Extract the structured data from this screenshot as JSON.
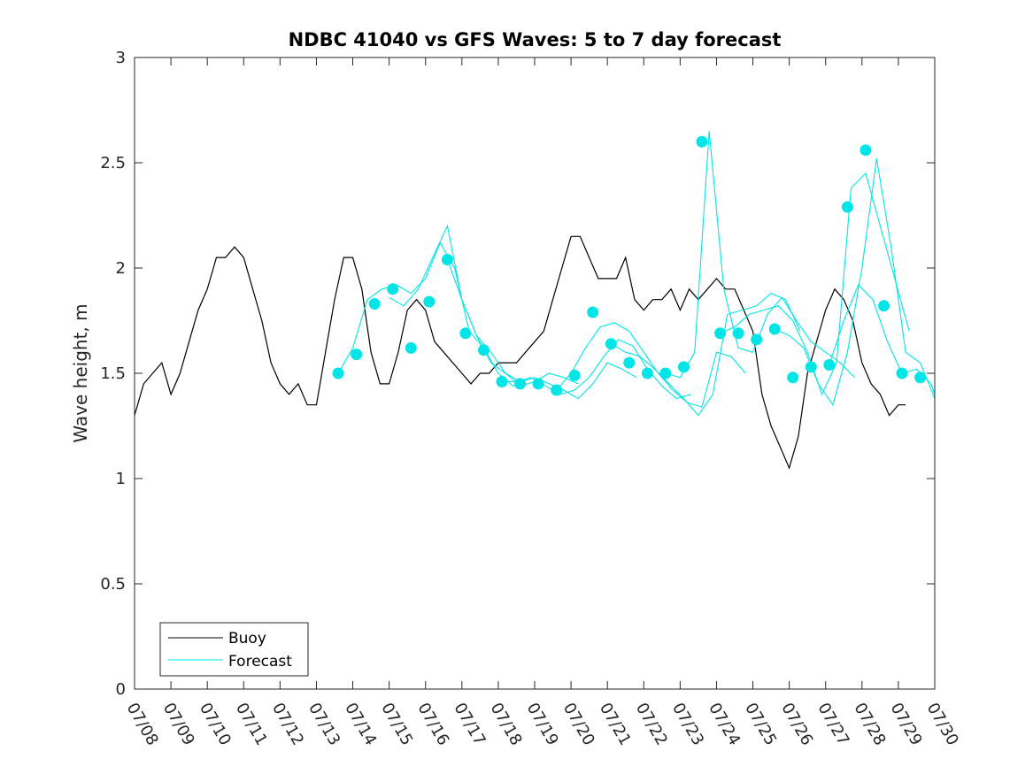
{
  "chart_data": {
    "type": "line",
    "title": "NDBC 41040 vs GFS Waves: 5 to 7 day forecast",
    "xlabel": "",
    "ylabel": "Wave height, m",
    "x_tick_labels": [
      "07/08",
      "07/09",
      "07/10",
      "07/11",
      "07/12",
      "07/13",
      "07/14",
      "07/15",
      "07/16",
      "07/17",
      "07/18",
      "07/19",
      "07/20",
      "07/21",
      "07/22",
      "07/23",
      "07/24",
      "07/25",
      "07/26",
      "07/27",
      "07/28",
      "07/29",
      "07/30"
    ],
    "x_range_days": [
      0,
      22
    ],
    "y_ticks": [
      0,
      0.5,
      1,
      1.5,
      2,
      2.5,
      3
    ],
    "y_tick_labels": [
      "0",
      "0.5",
      "1",
      "1.5",
      "2",
      "2.5",
      "3"
    ],
    "ylim": [
      0,
      3
    ],
    "grid": false,
    "legend": {
      "placement": "bottom-left",
      "entries": [
        "Buoy",
        "Forecast"
      ]
    },
    "colors": {
      "buoy": "#000000",
      "forecast": "#00e5e5",
      "axis": "#262626"
    },
    "series": [
      {
        "name": "Buoy",
        "style": "line",
        "x": [
          0,
          0.25,
          0.5,
          0.75,
          1,
          1.25,
          1.5,
          1.75,
          2,
          2.25,
          2.5,
          2.75,
          3,
          3.25,
          3.5,
          3.75,
          4,
          4.25,
          4.5,
          4.75,
          5,
          5.25,
          5.5,
          5.75,
          6,
          6.25,
          6.5,
          6.75,
          7,
          7.25,
          7.5,
          7.75,
          8,
          8.25,
          8.5,
          8.75,
          9,
          9.25,
          9.5,
          9.75,
          10,
          10.25,
          10.5,
          10.75,
          11,
          11.25,
          11.5,
          11.75,
          12,
          12.25,
          12.5,
          12.75,
          13,
          13.25,
          13.5,
          13.75,
          14,
          14.25,
          14.5,
          14.75,
          15,
          15.25,
          15.5,
          15.75,
          16,
          16.25,
          16.5,
          16.75,
          17,
          17.25,
          17.5,
          17.75,
          18,
          18.25,
          18.5,
          18.75,
          19,
          19.25,
          19.5,
          19.75,
          20,
          20.25,
          20.5,
          20.75,
          21,
          21.2
        ],
        "y": [
          1.3,
          1.45,
          1.5,
          1.55,
          1.4,
          1.5,
          1.65,
          1.8,
          1.9,
          2.05,
          2.05,
          2.1,
          2.05,
          1.9,
          1.75,
          1.55,
          1.45,
          1.4,
          1.45,
          1.35,
          1.35,
          1.6,
          1.85,
          2.05,
          2.05,
          1.9,
          1.6,
          1.45,
          1.45,
          1.6,
          1.8,
          1.85,
          1.8,
          1.65,
          1.6,
          1.55,
          1.5,
          1.45,
          1.5,
          1.5,
          1.55,
          1.55,
          1.55,
          1.6,
          1.65,
          1.7,
          1.85,
          2.0,
          2.15,
          2.15,
          2.05,
          1.95,
          1.95,
          1.95,
          2.05,
          1.85,
          1.8,
          1.85,
          1.85,
          1.9,
          1.8,
          1.9,
          1.85,
          1.9,
          1.95,
          1.9,
          1.9,
          1.8,
          1.7,
          1.4,
          1.25,
          1.15,
          1.05,
          1.2,
          1.5,
          1.65,
          1.8,
          1.9,
          1.85,
          1.75,
          1.55,
          1.45,
          1.4,
          1.3,
          1.35,
          1.35
        ]
      },
      {
        "name": "Forecast",
        "style": "markers",
        "x": [
          5.6,
          6.1,
          6.6,
          7.1,
          7.6,
          8.1,
          8.6,
          9.1,
          9.6,
          10.1,
          10.6,
          11.1,
          11.6,
          12.1,
          12.6,
          13.1,
          13.6,
          14.1,
          14.6,
          15.1,
          15.6,
          16.1,
          16.6,
          17.1,
          17.6,
          18.1,
          18.6,
          19.1,
          19.6,
          20.1,
          20.6,
          21.1,
          21.6
        ],
        "y": [
          1.5,
          1.59,
          1.83,
          1.9,
          1.62,
          1.84,
          2.04,
          1.69,
          1.61,
          1.46,
          1.45,
          1.45,
          1.42,
          1.49,
          1.79,
          1.64,
          1.55,
          1.5,
          1.5,
          1.53,
          2.6,
          1.69,
          1.69,
          1.66,
          1.71,
          1.48,
          1.53,
          1.54,
          2.29,
          2.56,
          1.82,
          1.5,
          1.48
        ]
      }
    ],
    "forecast_traces": [
      {
        "x": [
          5.6,
          6.0,
          6.4,
          6.8,
          7.2,
          7.6,
          8.0,
          8.4,
          8.8,
          9.2,
          9.6,
          10.0,
          10.4,
          10.8
        ],
        "y": [
          1.5,
          1.62,
          1.85,
          1.9,
          1.92,
          1.88,
          1.95,
          2.12,
          2.0,
          1.7,
          1.62,
          1.5,
          1.44,
          1.47
        ]
      },
      {
        "x": [
          7.0,
          7.4,
          7.8,
          8.2,
          8.6,
          9.0,
          9.4,
          9.8,
          10.2,
          10.6,
          11.0,
          11.4,
          11.8,
          12.2
        ],
        "y": [
          1.86,
          1.82,
          1.9,
          2.05,
          2.2,
          1.85,
          1.68,
          1.55,
          1.5,
          1.44,
          1.46,
          1.5,
          1.48,
          1.45
        ]
      },
      {
        "x": [
          8.6,
          9.0,
          9.4,
          9.8,
          10.2,
          10.6,
          11.0,
          11.4,
          11.8,
          12.2,
          12.6,
          13.0,
          13.4,
          13.8
        ],
        "y": [
          2.04,
          1.85,
          1.68,
          1.6,
          1.5,
          1.46,
          1.48,
          1.45,
          1.42,
          1.38,
          1.45,
          1.55,
          1.52,
          1.48
        ]
      },
      {
        "x": [
          10.1,
          10.5,
          10.9,
          11.3,
          11.7,
          12.1,
          12.5,
          12.9,
          13.3,
          13.7,
          14.1,
          14.5,
          14.9,
          15.3
        ],
        "y": [
          1.46,
          1.46,
          1.48,
          1.44,
          1.4,
          1.42,
          1.48,
          1.58,
          1.66,
          1.63,
          1.52,
          1.44,
          1.38,
          1.4
        ]
      },
      {
        "x": [
          11.6,
          12.0,
          12.4,
          12.8,
          13.2,
          13.6,
          14.0,
          14.4,
          14.8,
          15.2,
          15.6,
          16.0,
          16.4,
          16.8
        ],
        "y": [
          1.42,
          1.5,
          1.62,
          1.72,
          1.74,
          1.7,
          1.6,
          1.5,
          1.42,
          1.36,
          1.34,
          1.6,
          1.58,
          1.5
        ]
      },
      {
        "x": [
          13.1,
          13.5,
          13.9,
          14.3,
          14.7,
          15.1,
          15.5,
          15.9,
          16.3,
          16.7,
          17.1,
          17.5,
          17.9,
          18.3
        ],
        "y": [
          1.64,
          1.6,
          1.58,
          1.52,
          1.45,
          1.38,
          1.3,
          1.4,
          1.78,
          1.8,
          1.82,
          1.88,
          1.85,
          1.7
        ]
      },
      {
        "x": [
          14.6,
          15.0,
          15.4,
          15.8,
          16.2,
          16.6,
          17.0,
          17.4,
          17.8,
          18.2,
          18.6,
          19.0,
          19.4,
          19.8
        ],
        "y": [
          1.5,
          1.48,
          1.6,
          2.65,
          1.9,
          1.62,
          1.6,
          1.78,
          1.86,
          1.75,
          1.65,
          1.6,
          1.55,
          1.48
        ]
      },
      {
        "x": [
          16.1,
          16.5,
          16.9,
          17.3,
          17.7,
          18.1,
          18.5,
          18.9,
          19.3,
          19.7,
          20.1,
          20.5,
          20.9,
          21.3
        ],
        "y": [
          1.69,
          1.72,
          1.78,
          1.8,
          1.82,
          1.75,
          1.6,
          1.4,
          1.55,
          2.38,
          2.45,
          2.2,
          1.95,
          1.7
        ]
      },
      {
        "x": [
          17.6,
          18.0,
          18.4,
          18.8,
          19.2,
          19.6,
          20.0,
          20.4,
          20.8,
          21.2,
          21.6,
          22.0
        ],
        "y": [
          1.71,
          1.68,
          1.62,
          1.45,
          1.35,
          1.6,
          2.0,
          2.52,
          2.1,
          1.6,
          1.55,
          1.38
        ]
      },
      {
        "x": [
          19.1,
          19.5,
          19.9,
          20.3,
          20.7,
          21.1,
          21.5,
          21.9,
          22.0
        ],
        "y": [
          1.54,
          1.75,
          1.92,
          1.85,
          1.65,
          1.5,
          1.52,
          1.45,
          1.4
        ]
      }
    ]
  }
}
